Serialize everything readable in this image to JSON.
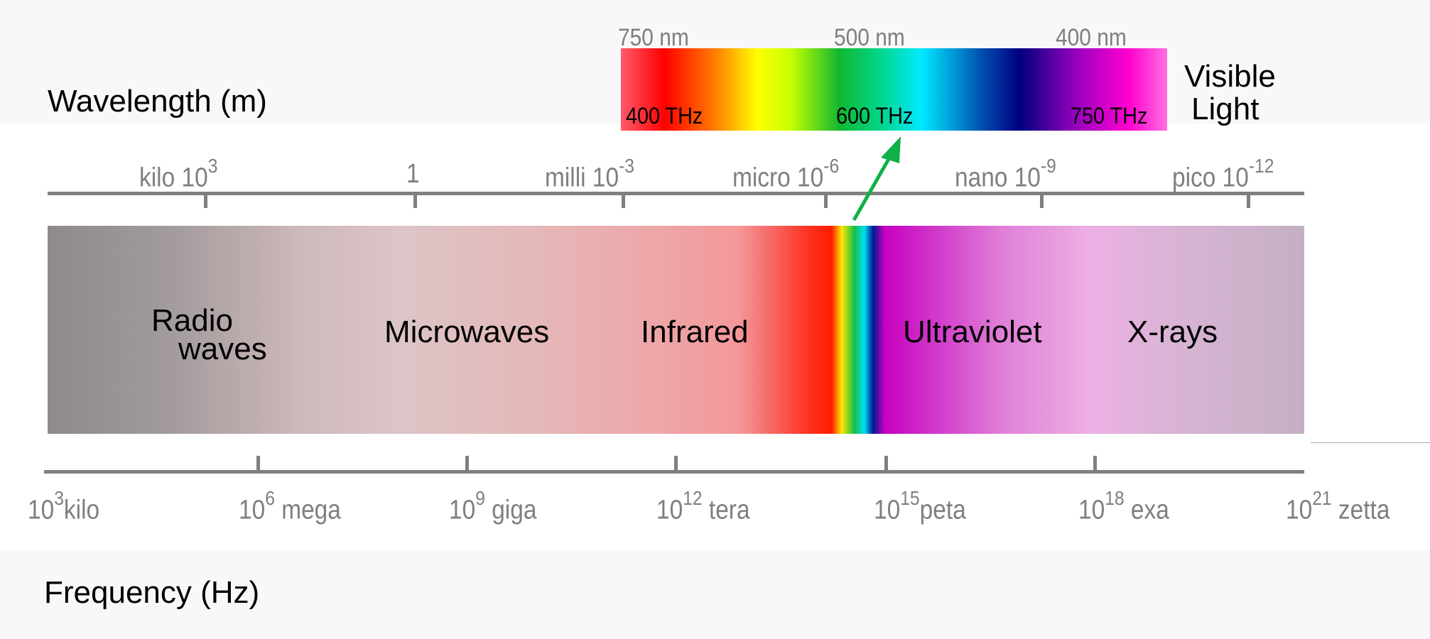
{
  "titles": {
    "wavelength": "Wavelength (m)",
    "frequency": "Frequency (Hz)"
  },
  "wavelength_ticks": [
    {
      "prefix": "kilo",
      "base": "10",
      "exp": "3"
    },
    {
      "prefix": "",
      "base": "1",
      "exp": ""
    },
    {
      "prefix": "milli",
      "base": "10",
      "exp": "-3"
    },
    {
      "prefix": "micro",
      "base": "10",
      "exp": "-6"
    },
    {
      "prefix": "nano",
      "base": "10",
      "exp": "-9"
    },
    {
      "prefix": "pico",
      "base": "10",
      "exp": "-12"
    }
  ],
  "frequency_ticks": [
    {
      "base": "10",
      "exp": "3",
      "prefix": "kilo"
    },
    {
      "base": "10",
      "exp": "6",
      "prefix": "mega"
    },
    {
      "base": "10",
      "exp": "9",
      "prefix": "giga"
    },
    {
      "base": "10",
      "exp": "12",
      "prefix": "tera"
    },
    {
      "base": "10",
      "exp": "15",
      "prefix": "peta"
    },
    {
      "base": "10",
      "exp": "18",
      "prefix": "exa"
    },
    {
      "base": "10",
      "exp": "21",
      "prefix": "zetta"
    }
  ],
  "bands": {
    "radio_line1": "Radio",
    "radio_line2": "waves",
    "microwaves": "Microwaves",
    "infrared": "Infrared",
    "ultraviolet": "Ultraviolet",
    "xrays": "X-rays"
  },
  "visible": {
    "label_line1": "Visible",
    "label_line2": "Light",
    "nm": [
      "750 nm",
      "500 nm",
      "400 nm"
    ],
    "thz": [
      "400 THz",
      "600 THz",
      "750 THz"
    ]
  },
  "colors": {
    "axis": "#7f7f7f",
    "arrow": "#10b048"
  }
}
